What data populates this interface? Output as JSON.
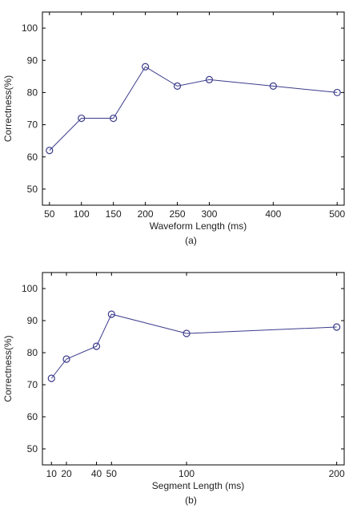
{
  "chart_data": [
    {
      "type": "line",
      "xlabel": "Waveform Length (ms)",
      "ylabel": "Correctness(%)",
      "caption": "(a)",
      "x": [
        50,
        100,
        150,
        200,
        250,
        300,
        400,
        500
      ],
      "series": [
        {
          "color": "#3b3b8c",
          "values": [
            62,
            72,
            72,
            88,
            82,
            84,
            82,
            80
          ]
        }
      ],
      "xlim": [
        39,
        511
      ],
      "xticks": [
        50,
        100,
        150,
        200,
        250,
        300,
        400,
        500
      ],
      "ylim": [
        45,
        105
      ],
      "yticks": [
        50,
        60,
        70,
        80,
        90,
        100
      ],
      "marker": "circle"
    },
    {
      "type": "line",
      "xlabel": "Segment Length (ms)",
      "ylabel": "Correctness(%)",
      "caption": "(b)",
      "x": [
        10,
        20,
        40,
        50,
        100,
        200
      ],
      "series": [
        {
          "color": "#3b3b8c",
          "values": [
            72,
            78,
            82,
            92,
            86,
            88
          ]
        }
      ],
      "xlim": [
        4,
        205
      ],
      "xticks": [
        10,
        20,
        40,
        50,
        100,
        200
      ],
      "ylim": [
        45,
        105
      ],
      "yticks": [
        50,
        60,
        70,
        80,
        90,
        100
      ],
      "marker": "circle"
    }
  ]
}
